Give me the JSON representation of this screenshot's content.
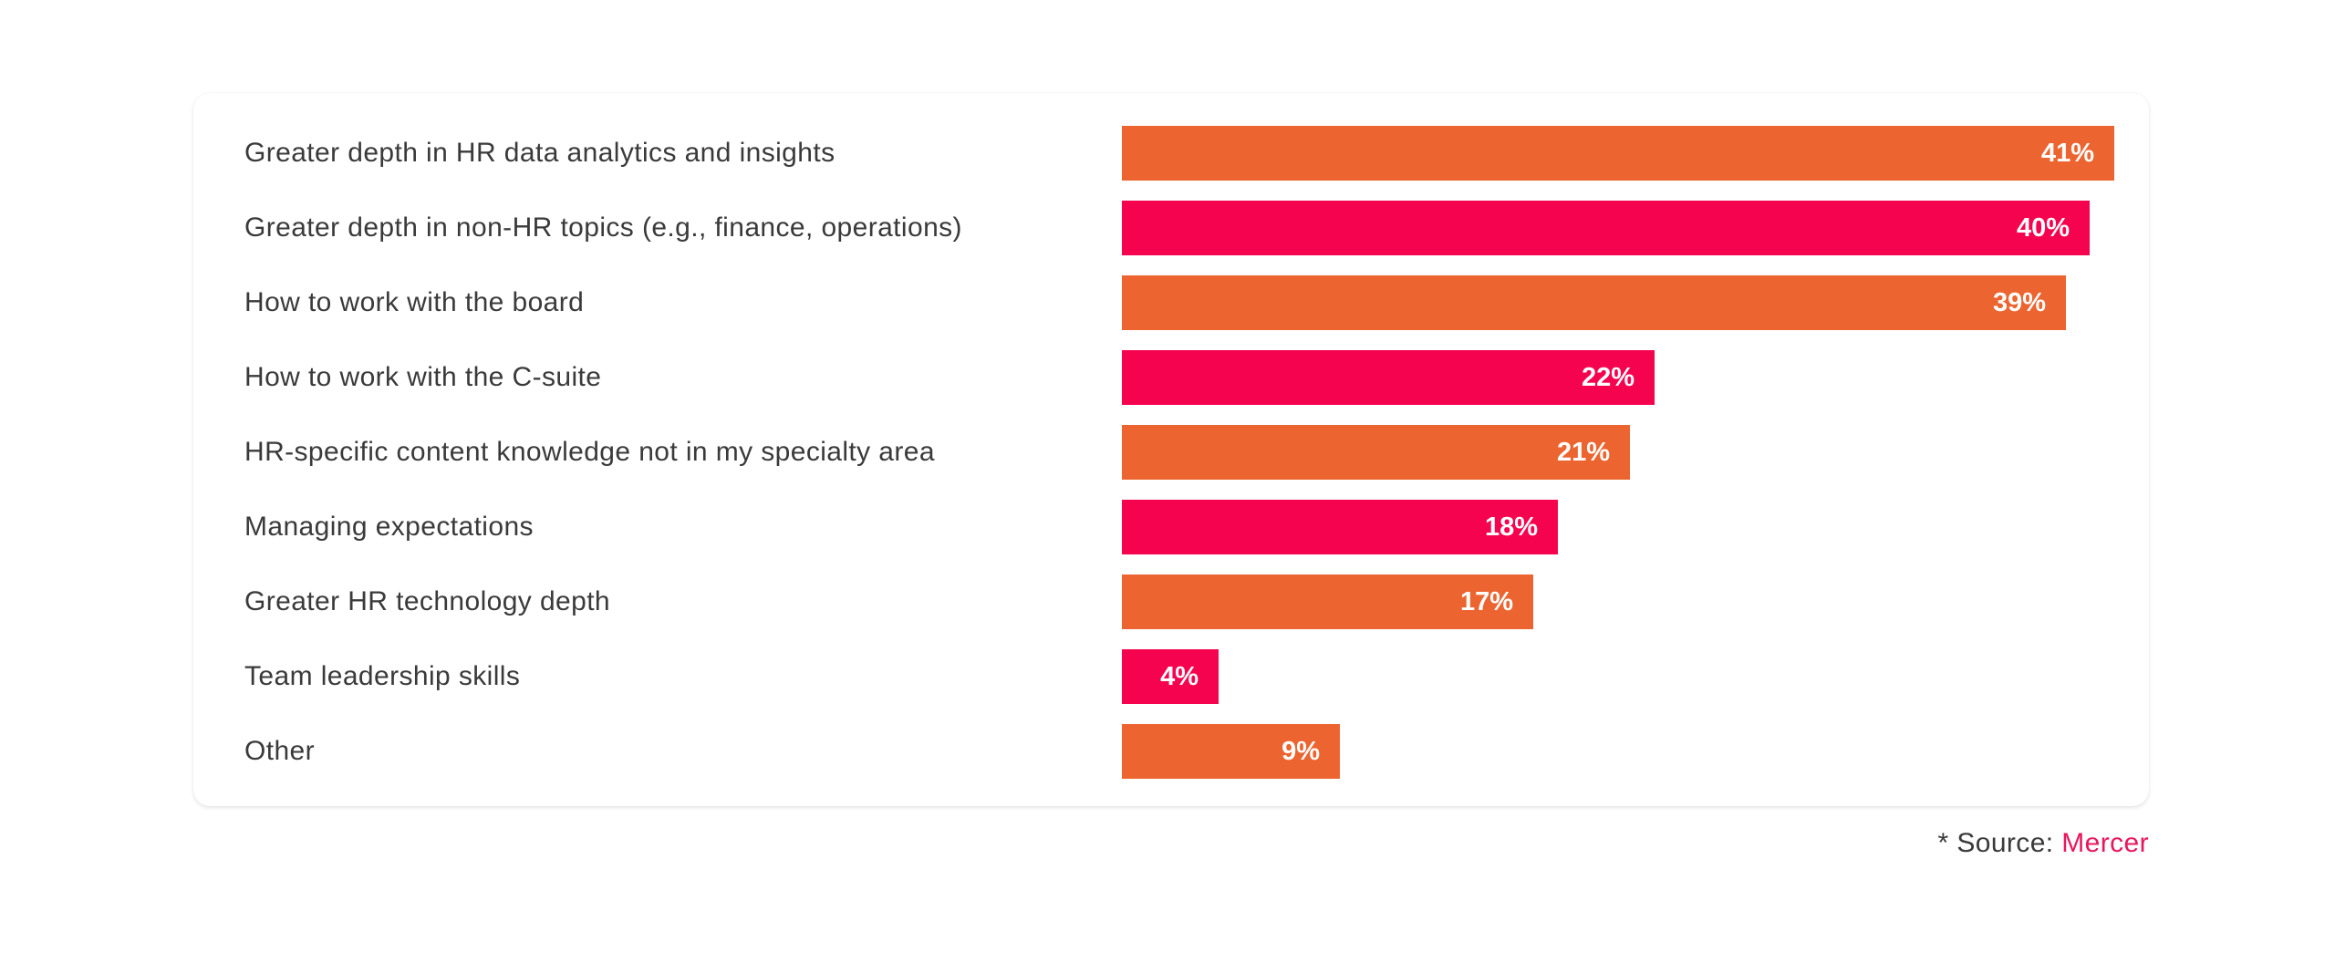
{
  "chart_data": {
    "type": "bar",
    "orientation": "horizontal",
    "categories": [
      "Greater depth in HR data analytics and insights",
      "Greater depth in non-HR topics (e.g., finance, operations)",
      "How to work with the board",
      "How to work with the C-suite",
      "HR-specific content knowledge not in my specialty area",
      "Managing expectations",
      "Greater HR technology depth",
      "Team leadership skills",
      "Other"
    ],
    "values": [
      41,
      40,
      39,
      22,
      21,
      18,
      17,
      4,
      9
    ],
    "value_labels": [
      "41%",
      "40%",
      "39%",
      "22%",
      "21%",
      "18%",
      "17%",
      "4%",
      "9%"
    ],
    "bar_colors": [
      "#ec6530",
      "#f5034f",
      "#ec6530",
      "#f5034f",
      "#ec6530",
      "#f5034f",
      "#ec6530",
      "#f5034f",
      "#ec6530"
    ],
    "xlim": [
      0,
      41
    ],
    "grid": false,
    "legend": "none"
  },
  "source": {
    "prefix": "* Source: ",
    "name": "Mercer",
    "name_color": "#e8175d"
  }
}
